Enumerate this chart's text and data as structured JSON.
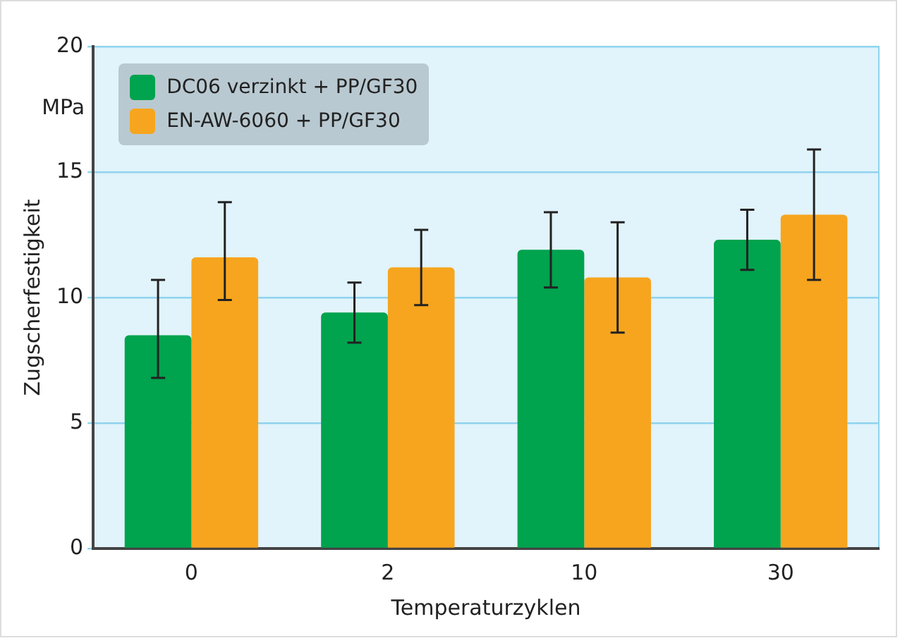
{
  "chart_data": {
    "type": "bar",
    "xlabel": "Temperaturzyklen",
    "ylabel": "Zugscherfestigkeit",
    "annotations": [
      "MPa"
    ],
    "categories": [
      "0",
      "2",
      "10",
      "30"
    ],
    "series": [
      {
        "name": "DC06 verzinkt + PP/GF30",
        "color": "#00a34e",
        "values": [
          8.5,
          9.4,
          11.9,
          12.3
        ],
        "errors": [
          [
            6.8,
            10.7
          ],
          [
            8.2,
            10.6
          ],
          [
            10.4,
            13.4
          ],
          [
            11.1,
            13.5
          ]
        ]
      },
      {
        "name": "EN-AW-6060 + PP/GF30",
        "color": "#f7a51e",
        "values": [
          11.6,
          11.2,
          10.8,
          13.3
        ],
        "errors": [
          [
            9.9,
            13.8
          ],
          [
            9.7,
            12.7
          ],
          [
            8.6,
            13.0
          ],
          [
            10.7,
            15.9
          ]
        ]
      }
    ],
    "ylim": [
      0,
      20
    ],
    "yticks": [
      0,
      5,
      10,
      15,
      20
    ],
    "grid": "y",
    "legend": "top left"
  }
}
